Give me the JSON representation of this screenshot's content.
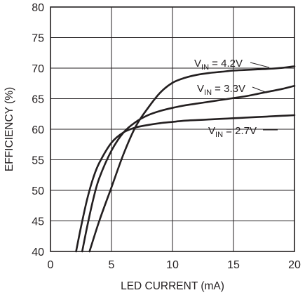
{
  "chart_data": {
    "type": "line",
    "xlabel": "LED CURRENT (mA)",
    "ylabel": "EFFICIENCY (%)",
    "xlim": [
      0,
      20
    ],
    "ylim": [
      40,
      80
    ],
    "x_ticks": [
      "0",
      "5",
      "10",
      "15",
      "20"
    ],
    "y_ticks": [
      "40",
      "45",
      "50",
      "55",
      "60",
      "65",
      "70",
      "75",
      "80"
    ],
    "grid": true,
    "series": [
      {
        "name": "VIN = 4.2V",
        "label_main": "V",
        "label_sub": "IN",
        "label_rest": " = 4.2V",
        "x": [
          3.2,
          4,
          5,
          6,
          7,
          8,
          9,
          10,
          11,
          12,
          13,
          14,
          15,
          16,
          17,
          18,
          19,
          20
        ],
        "y": [
          40,
          45,
          50.5,
          56,
          60.5,
          63.5,
          66,
          67.6,
          68.4,
          68.9,
          69.2,
          69.4,
          69.6,
          69.7,
          69.8,
          69.9,
          70.05,
          70.3
        ]
      },
      {
        "name": "VIN = 3.3V",
        "label_main": "V",
        "label_sub": "IN",
        "label_rest": " = 3.3V",
        "x": [
          2.6,
          3,
          3.5,
          4,
          5,
          6,
          7,
          8,
          9,
          10,
          11,
          12,
          13,
          14,
          15,
          16,
          17,
          18,
          19,
          20
        ],
        "y": [
          40,
          44,
          48.5,
          52,
          56.5,
          59.5,
          61.2,
          62.3,
          63,
          63.5,
          63.9,
          64.2,
          64.5,
          64.8,
          65.1,
          65.4,
          65.8,
          66.2,
          66.6,
          67.1
        ]
      },
      {
        "name": "VIN = 2.7V",
        "label_main": "V",
        "label_sub": "IN",
        "label_rest": " = 2.7V",
        "x": [
          2.1,
          2.5,
          3,
          3.5,
          4,
          5,
          6,
          7,
          8,
          9,
          10,
          11,
          12,
          13,
          14,
          15,
          16,
          17,
          18,
          19,
          20
        ],
        "y": [
          40,
          44,
          48.5,
          52,
          54.5,
          57.8,
          59.5,
          60.3,
          60.7,
          61,
          61.2,
          61.4,
          61.5,
          61.6,
          61.7,
          61.8,
          61.9,
          62,
          62.1,
          62.2,
          62.3
        ]
      }
    ]
  }
}
